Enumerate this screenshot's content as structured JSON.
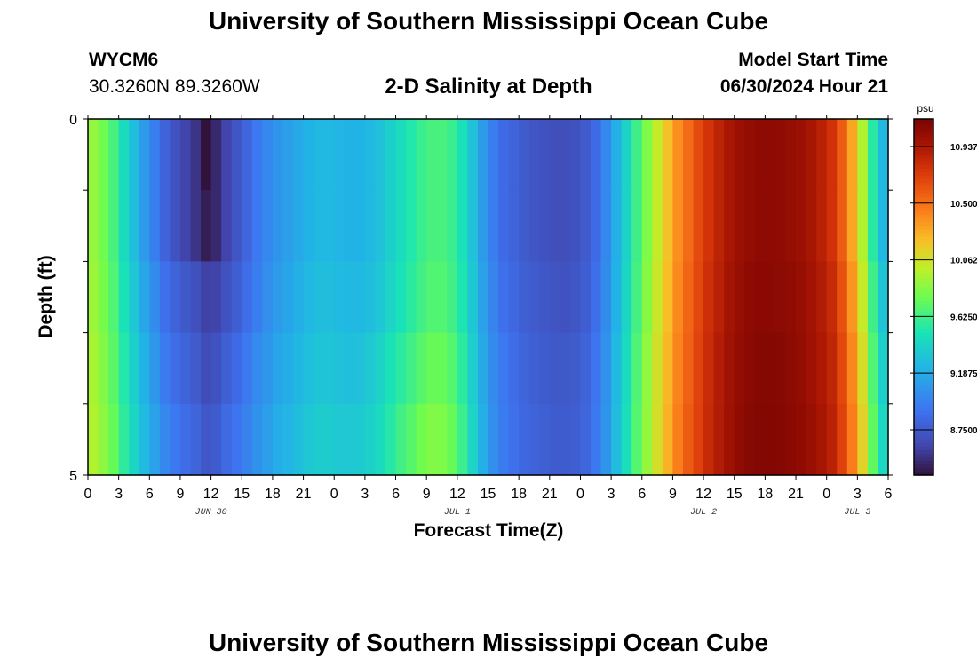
{
  "header": {
    "title": "University of Southern Mississippi Ocean Cube",
    "station": "WYCM6",
    "coords": "30.3260N  89.3260W",
    "subtitle": "2-D Salinity at Depth",
    "model_label": "Model Start Time",
    "model_time": "06/30/2024 Hour 21"
  },
  "footer": {
    "title": "University of Southern Mississippi Ocean Cube"
  },
  "chart_data": {
    "type": "heatmap",
    "title": "2-D Salinity at Depth",
    "xlabel": "Forecast Time(Z)",
    "ylabel": "Depth (ft)",
    "x_hours_since_start": [
      0,
      78
    ],
    "x_tick_labels": [
      "0",
      "3",
      "6",
      "9",
      "12",
      "15",
      "18",
      "21",
      "0",
      "3",
      "6",
      "9",
      "12",
      "15",
      "18",
      "21",
      "0",
      "3",
      "6",
      "9",
      "12",
      "15",
      "18",
      "21",
      "0",
      "3",
      "6"
    ],
    "y_tick_labels": [
      "0",
      "5"
    ],
    "ylim": [
      0,
      5
    ],
    "day_labels": [
      {
        "label": "JUN 30",
        "hour": 12
      },
      {
        "label": "JUL 1",
        "hour": 36
      },
      {
        "label": "JUL 2",
        "hour": 60
      },
      {
        "label": "JUL 3",
        "hour": 75
      }
    ],
    "depth_levels": 5,
    "units": "psu",
    "colorbar": {
      "range": [
        8.4,
        11.15
      ],
      "tick_labels": [
        "10.9375",
        "10.5000",
        "10.0625",
        "9.6250",
        "9.1875",
        "8.7500"
      ],
      "tick_values": [
        10.9375,
        10.5,
        10.0625,
        9.625,
        9.1875,
        8.75
      ]
    },
    "surface_salinity_by_hour": [
      9.88,
      9.78,
      9.65,
      9.45,
      9.28,
      9.1,
      8.95,
      8.8,
      8.7,
      8.62,
      8.55,
      8.45,
      8.5,
      8.62,
      8.72,
      8.82,
      8.92,
      9.0,
      9.07,
      9.12,
      9.17,
      9.22,
      9.25,
      9.25,
      9.23,
      9.22,
      9.22,
      9.25,
      9.3,
      9.38,
      9.46,
      9.53,
      9.6,
      9.65,
      9.65,
      9.6,
      9.48,
      9.3,
      9.1,
      8.95,
      8.85,
      8.8,
      8.75,
      8.72,
      8.7,
      8.68,
      8.68,
      8.7,
      8.75,
      8.85,
      9.0,
      9.2,
      9.4,
      9.62,
      9.82,
      10.02,
      10.2,
      10.38,
      10.52,
      10.65,
      10.77,
      10.86,
      10.94,
      11.0,
      11.04,
      11.06,
      11.06,
      11.05,
      11.03,
      11.0,
      10.95,
      10.88,
      10.78,
      10.58,
      10.3,
      9.95,
      9.55,
      9.25
    ],
    "depth_offset": [
      [
        0,
        0,
        0,
        0,
        0,
        0,
        0,
        0,
        0,
        0,
        0,
        0,
        0,
        0,
        0,
        0,
        0,
        0,
        0,
        0,
        0,
        0,
        0,
        0,
        0,
        0,
        0,
        0,
        0,
        0,
        0,
        0,
        0,
        0,
        0,
        0,
        0,
        0,
        0,
        0,
        0,
        0,
        0,
        0,
        0,
        0,
        0,
        0,
        0,
        0,
        0,
        0,
        0,
        0,
        0,
        0,
        0,
        0,
        0,
        0,
        0,
        0,
        0,
        0,
        0,
        0,
        0,
        0,
        0,
        0,
        0,
        0,
        0,
        0,
        0,
        0,
        0,
        0
      ],
      [
        0,
        0,
        0,
        0,
        0,
        0,
        0,
        0,
        0,
        0,
        0,
        0,
        0,
        0,
        0,
        0,
        0,
        0,
        0,
        0,
        0,
        0,
        0,
        0,
        0,
        0,
        0,
        0,
        0,
        0,
        0,
        0,
        0,
        0,
        0,
        0,
        0,
        0,
        0,
        0,
        0,
        0,
        0,
        0,
        0,
        0,
        0,
        0,
        0,
        0,
        0,
        0,
        0,
        0,
        0,
        0,
        0,
        0,
        0,
        0,
        0,
        0,
        0,
        0,
        0,
        0,
        0,
        0,
        0,
        0,
        0,
        0,
        0,
        0,
        0,
        0,
        0,
        0
      ],
      [
        0.02,
        0.02,
        0.03,
        0.04,
        0.05,
        0.06,
        0.07,
        0.08,
        0.1,
        0.12,
        0.14,
        0.16,
        0.12,
        0.08,
        0.05,
        0.04,
        0.03,
        0.03,
        0.03,
        0.03,
        0.03,
        0.03,
        0.03,
        0.03,
        0.03,
        0.03,
        0.03,
        0.03,
        0.03,
        0.03,
        0.03,
        0.03,
        0.03,
        0.03,
        0.03,
        0.03,
        0.03,
        0.03,
        0.03,
        0.03,
        0.03,
        0.03,
        0.03,
        0.03,
        0.03,
        0.03,
        0.02,
        0.02,
        0.02,
        0.02,
        0.02,
        0.02,
        0.02,
        0.02,
        0.02,
        0.02,
        0.02,
        0.02,
        0.02,
        0.02,
        0.02,
        0.02,
        0.02,
        0.02,
        0.02,
        0.02,
        0.02,
        0.02,
        0.02,
        0.02,
        0.02,
        0.03,
        0.04,
        0.05,
        0.06,
        0.07,
        0.07,
        0.07
      ],
      [
        0.05,
        0.05,
        0.06,
        0.08,
        0.1,
        0.12,
        0.13,
        0.14,
        0.16,
        0.18,
        0.2,
        0.22,
        0.2,
        0.16,
        0.13,
        0.1,
        0.09,
        0.08,
        0.08,
        0.07,
        0.07,
        0.07,
        0.07,
        0.07,
        0.07,
        0.07,
        0.08,
        0.09,
        0.1,
        0.1,
        0.1,
        0.1,
        0.1,
        0.1,
        0.1,
        0.09,
        0.08,
        0.07,
        0.07,
        0.07,
        0.07,
        0.06,
        0.06,
        0.06,
        0.06,
        0.06,
        0.06,
        0.05,
        0.05,
        0.05,
        0.05,
        0.05,
        0.05,
        0.05,
        0.05,
        0.05,
        0.04,
        0.04,
        0.04,
        0.04,
        0.04,
        0.04,
        0.04,
        0.04,
        0.04,
        0.04,
        0.04,
        0.04,
        0.04,
        0.04,
        0.04,
        0.05,
        0.07,
        0.09,
        0.11,
        0.13,
        0.13,
        0.13
      ],
      [
        0.08,
        0.08,
        0.1,
        0.12,
        0.14,
        0.16,
        0.18,
        0.2,
        0.22,
        0.24,
        0.26,
        0.28,
        0.26,
        0.22,
        0.18,
        0.15,
        0.13,
        0.12,
        0.12,
        0.11,
        0.11,
        0.11,
        0.11,
        0.11,
        0.11,
        0.12,
        0.13,
        0.14,
        0.15,
        0.16,
        0.17,
        0.17,
        0.18,
        0.18,
        0.17,
        0.15,
        0.13,
        0.11,
        0.1,
        0.09,
        0.09,
        0.08,
        0.08,
        0.08,
        0.08,
        0.08,
        0.08,
        0.07,
        0.07,
        0.07,
        0.07,
        0.07,
        0.07,
        0.07,
        0.06,
        0.06,
        0.06,
        0.06,
        0.06,
        0.05,
        0.05,
        0.05,
        0.05,
        0.05,
        0.05,
        0.05,
        0.05,
        0.05,
        0.05,
        0.05,
        0.06,
        0.07,
        0.09,
        0.12,
        0.15,
        0.18,
        0.18,
        0.18
      ]
    ],
    "min_value_cell": {
      "hour": 11,
      "depth_level": 0,
      "value": 8.4
    }
  }
}
